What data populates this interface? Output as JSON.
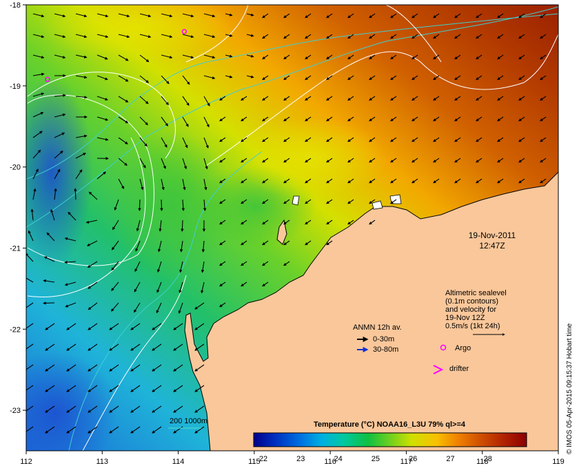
{
  "map": {
    "x_ticks": [
      "112",
      "113",
      "114",
      "115",
      "116",
      "117",
      "118",
      "119"
    ],
    "y_ticks": [
      "-18",
      "-19",
      "-20",
      "-21",
      "-22",
      "-23"
    ],
    "datetime_line1": "19-Nov-2011",
    "datetime_line2": "12:47Z",
    "credit": "© IMOS 05-Apr-2015 09:15:37 Hobart time"
  },
  "altimetry_note": {
    "line1": "Altimetric sealevel",
    "line2": "(0.1m contours)",
    "line3": "and velocity for",
    "line4": "19-Nov 12Z",
    "line5": "0.5m/s (1kt 24h)"
  },
  "legend": {
    "anmn_title": "ANMN 12h av.",
    "anmn_shallow": "0-30m",
    "anmn_deep": "30-80m",
    "argo": "Argo",
    "drifter": "drifter",
    "isobath": "200  1000m",
    "shallow_color": "#000000",
    "deep_color": "#1030d0",
    "argo_color": "#ff00ff",
    "drifter_color": "#ff00ff",
    "isobath_color": "#40d0d0"
  },
  "colorbar": {
    "title": "Temperature (°C) NOAA16_L3U 79% ql>=4",
    "labels": [
      "22",
      "23",
      "24",
      "25",
      "26",
      "27",
      "28"
    ],
    "colors": [
      "#00008b",
      "#0030c0",
      "#0070e0",
      "#00b0e0",
      "#00c8a0",
      "#10c040",
      "#70d020",
      "#d0e000",
      "#f8c000",
      "#f08000",
      "#d05000",
      "#b02000",
      "#8b0000"
    ]
  },
  "land_color": "#f9c79a",
  "argo_floats": [
    {
      "lon": 114.08,
      "lat": -18.33
    },
    {
      "lon": 112.28,
      "lat": -18.92
    }
  ]
}
